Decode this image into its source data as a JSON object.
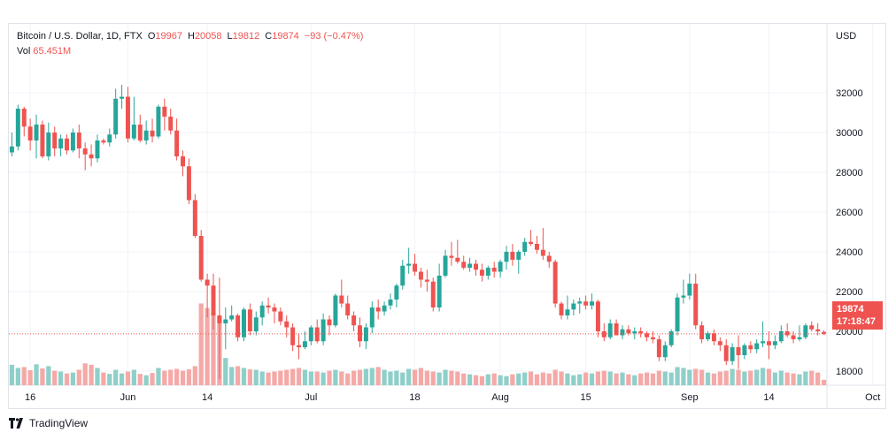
{
  "header": {
    "symbol": "Bitcoin / U.S. Dollar, 1D, FTX",
    "open_label": "O",
    "open": "19967",
    "high_label": "H",
    "high": "20058",
    "low_label": "L",
    "low": "19812",
    "close_label": "C",
    "close": "19874",
    "change": "−93 (−0.47%)",
    "vol_label": "Vol",
    "vol": "65.451M"
  },
  "axis": {
    "currency": "USD"
  },
  "price_tag": {
    "price": "19874",
    "countdown": "17:18:47"
  },
  "brand": {
    "name": "TradingView"
  },
  "colors": {
    "up": "#26a69a",
    "down": "#ef5350",
    "up_vol": "#8fcfc9",
    "down_vol": "#f5a9a7",
    "grid": "#f0f3fa",
    "text": "#131722"
  },
  "chart_data": {
    "type": "candlestick",
    "y_range": [
      17000,
      33500
    ],
    "y_ticks": [
      18000,
      20000,
      22000,
      24000,
      26000,
      28000,
      30000,
      32000
    ],
    "x_ticks": [
      {
        "label": "16",
        "index": 3
      },
      {
        "label": "Jun",
        "index": 19
      },
      {
        "label": "14",
        "index": 32
      },
      {
        "label": "Jul",
        "index": 49
      },
      {
        "label": "18",
        "index": 66
      },
      {
        "label": "Aug",
        "index": 80
      },
      {
        "label": "15",
        "index": 94
      },
      {
        "label": "Sep",
        "index": 111
      },
      {
        "label": "14",
        "index": 124
      },
      {
        "label": "Oct",
        "index": 141
      }
    ],
    "last_price": 19874,
    "candles": [
      [
        29000,
        30000,
        28800,
        29300,
        45
      ],
      [
        29300,
        31400,
        29100,
        31200,
        38
      ],
      [
        31200,
        31300,
        29800,
        30300,
        40
      ],
      [
        30300,
        30700,
        29100,
        29600,
        33
      ],
      [
        29600,
        30900,
        28700,
        30400,
        46
      ],
      [
        30400,
        30600,
        28700,
        28800,
        37
      ],
      [
        28800,
        30500,
        28600,
        30000,
        42
      ],
      [
        30000,
        30300,
        28800,
        29200,
        32
      ],
      [
        29200,
        29900,
        28800,
        29700,
        30
      ],
      [
        29700,
        29900,
        28900,
        29100,
        26
      ],
      [
        29100,
        30200,
        29000,
        30000,
        28
      ],
      [
        30000,
        30400,
        28700,
        29200,
        34
      ],
      [
        29200,
        29500,
        28100,
        28900,
        48
      ],
      [
        28900,
        29400,
        28300,
        28700,
        45
      ],
      [
        28700,
        29900,
        28500,
        29600,
        38
      ],
      [
        29600,
        29700,
        29400,
        29500,
        28
      ],
      [
        29500,
        30200,
        29300,
        29900,
        25
      ],
      [
        29900,
        32200,
        29700,
        31700,
        34
      ],
      [
        31700,
        32400,
        31200,
        31800,
        26
      ],
      [
        31800,
        32300,
        29500,
        29700,
        30
      ],
      [
        29700,
        31800,
        29600,
        30400,
        34
      ],
      [
        30400,
        30900,
        29500,
        29600,
        25
      ],
      [
        29600,
        30600,
        29400,
        30100,
        22
      ],
      [
        30100,
        30700,
        29500,
        29800,
        27
      ],
      [
        29800,
        31400,
        29700,
        31300,
        38
      ],
      [
        31300,
        31700,
        30100,
        30800,
        32
      ],
      [
        30800,
        31200,
        29900,
        30100,
        34
      ],
      [
        30100,
        30700,
        28600,
        28800,
        36
      ],
      [
        28800,
        29100,
        27800,
        28300,
        32
      ],
      [
        28300,
        28700,
        26400,
        26600,
        35
      ],
      [
        26600,
        26900,
        24700,
        24800,
        42
      ],
      [
        24800,
        25100,
        22500,
        22600,
        180
      ],
      [
        22600,
        22900,
        20700,
        22300,
        170
      ],
      [
        22300,
        22900,
        20100,
        20800,
        160
      ],
      [
        20800,
        22700,
        17600,
        20400,
        150
      ],
      [
        20400,
        21200,
        19100,
        20600,
        60
      ],
      [
        20600,
        21300,
        20500,
        20800,
        40
      ],
      [
        20800,
        20900,
        19500,
        19700,
        42
      ],
      [
        19700,
        21200,
        19500,
        21100,
        38
      ],
      [
        21100,
        21400,
        19800,
        20000,
        35
      ],
      [
        20000,
        21000,
        19800,
        20700,
        34
      ],
      [
        20700,
        21500,
        20300,
        21300,
        30
      ],
      [
        21300,
        21700,
        20900,
        21200,
        28
      ],
      [
        21200,
        21400,
        20400,
        21000,
        30
      ],
      [
        21000,
        21200,
        20300,
        20500,
        32
      ],
      [
        20500,
        20800,
        19700,
        20200,
        34
      ],
      [
        20200,
        20400,
        19000,
        19300,
        36
      ],
      [
        19300,
        19900,
        18600,
        19200,
        38
      ],
      [
        19200,
        20000,
        19100,
        19500,
        34
      ],
      [
        19500,
        20300,
        19300,
        20200,
        30
      ],
      [
        20200,
        20600,
        19400,
        19500,
        30
      ],
      [
        19500,
        20900,
        19300,
        20600,
        28
      ],
      [
        20600,
        20800,
        19800,
        20300,
        32
      ],
      [
        20300,
        21900,
        20200,
        21800,
        34
      ],
      [
        21800,
        22600,
        21200,
        21400,
        30
      ],
      [
        21400,
        21800,
        20600,
        20800,
        26
      ],
      [
        20800,
        21000,
        20000,
        20300,
        32
      ],
      [
        20300,
        20700,
        19200,
        19500,
        34
      ],
      [
        19500,
        20400,
        19100,
        20200,
        36
      ],
      [
        20200,
        21500,
        19900,
        21200,
        38
      ],
      [
        21200,
        21600,
        20600,
        21000,
        40
      ],
      [
        21000,
        21500,
        20800,
        21300,
        34
      ],
      [
        21300,
        21900,
        21100,
        21600,
        30
      ],
      [
        21600,
        22400,
        21200,
        22300,
        32
      ],
      [
        22300,
        23600,
        22100,
        23300,
        28
      ],
      [
        23300,
        24200,
        22900,
        23400,
        36
      ],
      [
        23400,
        23900,
        22800,
        23000,
        34
      ],
      [
        23000,
        23200,
        22200,
        22600,
        38
      ],
      [
        22600,
        23100,
        22000,
        22500,
        32
      ],
      [
        22500,
        22700,
        21000,
        21200,
        30
      ],
      [
        21200,
        23400,
        21000,
        22800,
        28
      ],
      [
        22800,
        24100,
        22700,
        23800,
        34
      ],
      [
        23800,
        24500,
        23300,
        23700,
        32
      ],
      [
        23700,
        24600,
        23400,
        23500,
        30
      ],
      [
        23500,
        23800,
        23100,
        23200,
        26
      ],
      [
        23200,
        23700,
        23000,
        23400,
        24
      ],
      [
        23400,
        23600,
        22800,
        23100,
        22
      ],
      [
        23100,
        23400,
        22500,
        22800,
        20
      ],
      [
        22800,
        23300,
        22600,
        23200,
        24
      ],
      [
        23200,
        23500,
        22700,
        23000,
        26
      ],
      [
        23000,
        23600,
        22700,
        23500,
        22
      ],
      [
        23500,
        24300,
        23100,
        24000,
        20
      ],
      [
        24000,
        24400,
        23300,
        23600,
        24
      ],
      [
        23600,
        24100,
        22900,
        24000,
        26
      ],
      [
        24000,
        24700,
        23800,
        24500,
        28
      ],
      [
        24500,
        25100,
        24300,
        24400,
        30
      ],
      [
        24400,
        24800,
        23900,
        24100,
        24
      ],
      [
        24100,
        25200,
        23600,
        23800,
        28
      ],
      [
        23800,
        24000,
        23200,
        23500,
        26
      ],
      [
        23500,
        23600,
        21200,
        21400,
        34
      ],
      [
        21400,
        21500,
        20600,
        20800,
        30
      ],
      [
        20800,
        21800,
        20600,
        21100,
        26
      ],
      [
        21100,
        21600,
        20800,
        21400,
        22
      ],
      [
        21400,
        21700,
        20900,
        21500,
        24
      ],
      [
        21500,
        21800,
        21100,
        21300,
        28
      ],
      [
        21300,
        21900,
        21100,
        21500,
        26
      ],
      [
        21500,
        21600,
        19700,
        20000,
        30
      ],
      [
        20000,
        20400,
        19500,
        19700,
        32
      ],
      [
        19700,
        20600,
        19600,
        20400,
        30
      ],
      [
        20400,
        20600,
        19800,
        19800,
        26
      ],
      [
        19800,
        20300,
        19600,
        20100,
        28
      ],
      [
        20100,
        20300,
        19800,
        19900,
        24
      ],
      [
        19900,
        20200,
        19600,
        20000,
        22
      ],
      [
        20000,
        20200,
        19700,
        19900,
        26
      ],
      [
        19900,
        20000,
        19500,
        19700,
        28
      ],
      [
        19700,
        20000,
        19400,
        19600,
        26
      ],
      [
        19600,
        19800,
        18500,
        18700,
        32
      ],
      [
        18700,
        19500,
        18500,
        19300,
        30
      ],
      [
        19300,
        20100,
        19200,
        20000,
        28
      ],
      [
        20000,
        21900,
        19800,
        21700,
        40
      ],
      [
        21700,
        22600,
        21400,
        21800,
        38
      ],
      [
        21800,
        22900,
        21600,
        22400,
        34
      ],
      [
        22400,
        22900,
        20100,
        20300,
        36
      ],
      [
        20300,
        20500,
        19400,
        19600,
        34
      ],
      [
        19600,
        20000,
        19500,
        19900,
        28
      ],
      [
        19900,
        20100,
        19300,
        19500,
        26
      ],
      [
        19500,
        19700,
        19000,
        19300,
        30
      ],
      [
        19300,
        19600,
        18300,
        18500,
        32
      ],
      [
        18500,
        19400,
        18300,
        19200,
        36
      ],
      [
        19200,
        19800,
        18100,
        18800,
        34
      ],
      [
        18800,
        19400,
        18600,
        19300,
        30
      ],
      [
        19300,
        19500,
        18900,
        19100,
        32
      ],
      [
        19100,
        19600,
        18900,
        19400,
        34
      ],
      [
        19400,
        20500,
        19200,
        19500,
        38
      ],
      [
        19500,
        20000,
        18600,
        19300,
        36
      ],
      [
        19300,
        19800,
        19100,
        19500,
        28
      ],
      [
        19500,
        20300,
        19400,
        20000,
        32
      ],
      [
        20000,
        20400,
        19700,
        19800,
        28
      ],
      [
        19800,
        20000,
        19400,
        19600,
        26
      ],
      [
        19600,
        20300,
        19500,
        19700,
        24
      ],
      [
        19700,
        20400,
        19600,
        20300,
        30
      ],
      [
        20300,
        20500,
        20000,
        20100,
        32
      ],
      [
        20100,
        20400,
        19800,
        20000,
        28
      ],
      [
        19967,
        20058,
        19812,
        19874,
        12
      ]
    ]
  }
}
